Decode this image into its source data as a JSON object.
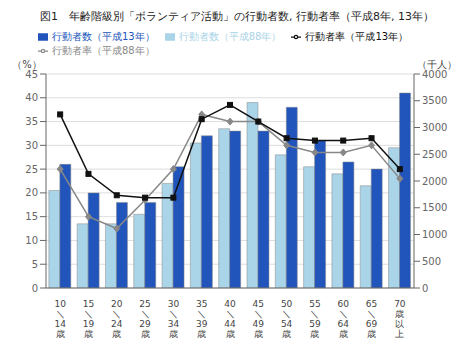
{
  "chart_data": {
    "type": "bar",
    "title": "図1　年齢階級別「ボランティア活動」の行動者数, 行動者率（平成8年, 13年）",
    "y_label": "（%）",
    "y2_label": "（千人）",
    "categories": [
      "10\n＼\n14\n歳",
      "15\n＼\n19\n歳",
      "20\n＼\n24\n歳",
      "25\n＼\n29\n歳",
      "30\n＼\n34\n歳",
      "35\n＼\n39\n歳",
      "40\n＼\n44\n歳",
      "45\n＼\n49\n歳",
      "50\n＼\n54\n歳",
      "55\n＼\n59\n歳",
      "60\n＼\n64\n歳",
      "65\n＼\n69\n歳",
      "70\n歳\n以\n上"
    ],
    "series": [
      {
        "name": "行動者数（平成88年）",
        "type": "bar",
        "color": "#aad4e8",
        "values": [
          20.5,
          13.5,
          13.5,
          15.5,
          22.0,
          30.5,
          33.5,
          39.0,
          28.0,
          25.5,
          24.0,
          21.5,
          29.5
        ]
      },
      {
        "name": "行動者数（平成13年）",
        "type": "bar",
        "color": "#2255bb",
        "values": [
          26.0,
          20.0,
          18.0,
          18.0,
          25.5,
          32.0,
          33.0,
          33.0,
          38.0,
          31.0,
          26.5,
          25.0,
          41.0
        ]
      },
      {
        "name": "行動者率（平成88年）",
        "type": "line",
        "color": "#888888",
        "marker": "diamond",
        "values": [
          25.0,
          15.0,
          12.5,
          18.5,
          25.0,
          36.5,
          35.0,
          35.0,
          30.0,
          28.5,
          28.5,
          30.0,
          23.0
        ]
      },
      {
        "name": "行動者率（平成13年）",
        "type": "line",
        "color": "#111111",
        "marker": "square",
        "values": [
          36.5,
          24.0,
          19.5,
          19.0,
          19.0,
          35.5,
          38.5,
          35.0,
          31.5,
          31.0,
          31.0,
          31.5,
          25.0
        ]
      }
    ],
    "ylim": [
      0,
      45
    ],
    "yticks": [
      0,
      5,
      10,
      15,
      20,
      25,
      30,
      35,
      40,
      45
    ],
    "y2lim": [
      0,
      4000
    ],
    "y2ticks": [
      0,
      500,
      1000,
      1500,
      2000,
      2500,
      3000,
      3500,
      4000
    ],
    "grid": true,
    "legend": "upper left"
  }
}
